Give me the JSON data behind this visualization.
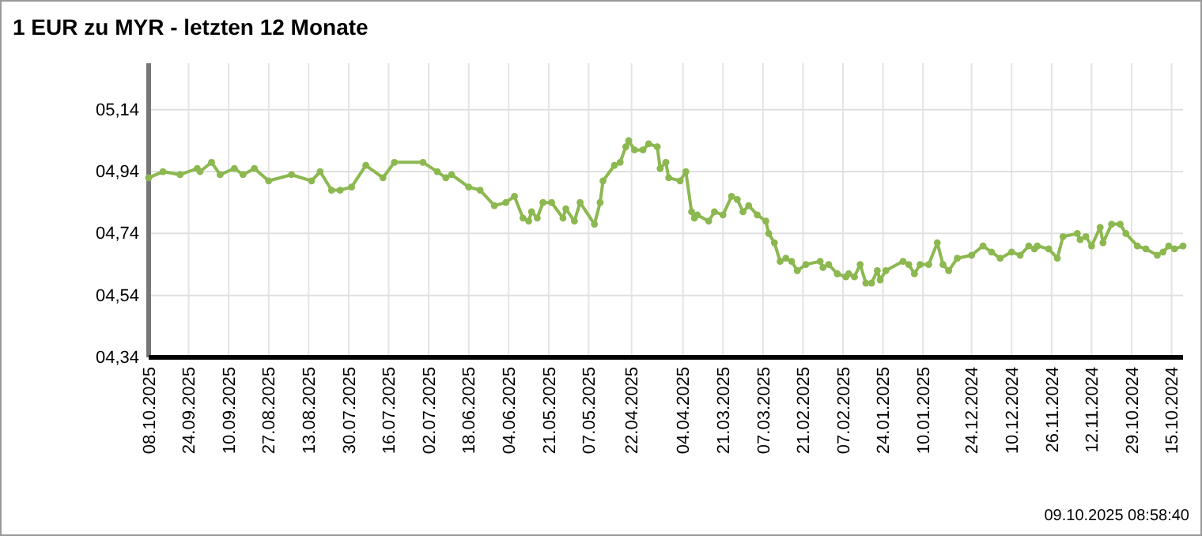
{
  "chart_data": {
    "type": "line",
    "title": "1 EUR zu MYR - letzten 12 Monate",
    "annotations": [
      "09.10.2025 08:58:40"
    ],
    "xlim": [
      "2025-10-08",
      "2024-10-11"
    ],
    "xticks": [
      {
        "value": "2025-10-08",
        "label": "08.10.2025"
      },
      {
        "value": "2025-09-24",
        "label": "24.09.2025"
      },
      {
        "value": "2025-09-10",
        "label": "10.09.2025"
      },
      {
        "value": "2025-08-27",
        "label": "27.08.2025"
      },
      {
        "value": "2025-08-13",
        "label": "13.08.2025"
      },
      {
        "value": "2025-07-30",
        "label": "30.07.2025"
      },
      {
        "value": "2025-07-16",
        "label": "16.07.2025"
      },
      {
        "value": "2025-07-02",
        "label": "02.07.2025"
      },
      {
        "value": "2025-06-18",
        "label": "18.06.2025"
      },
      {
        "value": "2025-06-04",
        "label": "04.06.2025"
      },
      {
        "value": "2025-05-21",
        "label": "21.05.2025"
      },
      {
        "value": "2025-05-07",
        "label": "07.05.2025"
      },
      {
        "value": "2025-04-22",
        "label": "22.04.2025"
      },
      {
        "value": "2025-04-04",
        "label": "04.04.2025"
      },
      {
        "value": "2025-03-21",
        "label": "21.03.2025"
      },
      {
        "value": "2025-03-07",
        "label": "07.03.2025"
      },
      {
        "value": "2025-02-21",
        "label": "21.02.2025"
      },
      {
        "value": "2025-02-07",
        "label": "07.02.2025"
      },
      {
        "value": "2025-01-24",
        "label": "24.01.2025"
      },
      {
        "value": "2025-01-10",
        "label": "10.01.2025"
      },
      {
        "value": "2024-12-24",
        "label": "24.12.2024"
      },
      {
        "value": "2024-12-10",
        "label": "10.12.2024"
      },
      {
        "value": "2024-11-26",
        "label": "26.11.2024"
      },
      {
        "value": "2024-11-12",
        "label": "12.11.2024"
      },
      {
        "value": "2024-10-29",
        "label": "29.10.2024"
      },
      {
        "value": "2024-10-15",
        "label": "15.10.2024"
      }
    ],
    "ylim": [
      4.34,
      5.29
    ],
    "yticks": [
      {
        "value": 4.34,
        "label": "04,34"
      },
      {
        "value": 4.54,
        "label": "04,54"
      },
      {
        "value": 4.74,
        "label": "04,74"
      },
      {
        "value": 4.94,
        "label": "04,94"
      },
      {
        "value": 5.14,
        "label": "05,14"
      }
    ],
    "grid": true,
    "marker": "circle",
    "line_style": "solid",
    "x": [
      "2025-10-08",
      "2025-10-03",
      "2025-09-27",
      "2025-09-21",
      "2025-09-20",
      "2025-09-16",
      "2025-09-13",
      "2025-09-08",
      "2025-09-05",
      "2025-09-01",
      "2025-08-27",
      "2025-08-19",
      "2025-08-12",
      "2025-08-09",
      "2025-08-05",
      "2025-08-02",
      "2025-07-29",
      "2025-07-24",
      "2025-07-18",
      "2025-07-14",
      "2025-07-04",
      "2025-06-29",
      "2025-06-26",
      "2025-06-24",
      "2025-06-18",
      "2025-06-14",
      "2025-06-09",
      "2025-06-05",
      "2025-06-02",
      "2025-05-30",
      "2025-05-28",
      "2025-05-27",
      "2025-05-25",
      "2025-05-23",
      "2025-05-20",
      "2025-05-16",
      "2025-05-15",
      "2025-05-12",
      "2025-05-10",
      "2025-05-05",
      "2025-05-03",
      "2025-05-02",
      "2025-04-28",
      "2025-04-26",
      "2025-04-24",
      "2025-04-23",
      "2025-04-21",
      "2025-04-18",
      "2025-04-16",
      "2025-04-13",
      "2025-04-12",
      "2025-04-10",
      "2025-04-09",
      "2025-04-05",
      "2025-04-03",
      "2025-04-01",
      "2025-03-31",
      "2025-03-30",
      "2025-03-26",
      "2025-03-24",
      "2025-03-21",
      "2025-03-18",
      "2025-03-16",
      "2025-03-14",
      "2025-03-12",
      "2025-03-09",
      "2025-03-06",
      "2025-03-05",
      "2025-03-03",
      "2025-03-01",
      "2025-02-27",
      "2025-02-25",
      "2025-02-23",
      "2025-02-20",
      "2025-02-15",
      "2025-02-14",
      "2025-02-12",
      "2025-02-09",
      "2025-02-06",
      "2025-02-05",
      "2025-02-03",
      "2025-02-01",
      "2025-01-30",
      "2025-01-28",
      "2025-01-26",
      "2025-01-25",
      "2025-01-23",
      "2025-01-17",
      "2025-01-15",
      "2025-01-13",
      "2025-01-11",
      "2025-01-08",
      "2025-01-05",
      "2025-01-03",
      "2025-01-01",
      "2024-12-29",
      "2024-12-24",
      "2024-12-20",
      "2024-12-17",
      "2024-12-14",
      "2024-12-10",
      "2024-12-07",
      "2024-12-04",
      "2024-12-02",
      "2024-12-01",
      "2024-11-27",
      "2024-11-24",
      "2024-11-22",
      "2024-11-17",
      "2024-11-16",
      "2024-11-14",
      "2024-11-12",
      "2024-11-09",
      "2024-11-08",
      "2024-11-05",
      "2024-11-02",
      "2024-10-31",
      "2024-10-27",
      "2024-10-24",
      "2024-10-20",
      "2024-10-18",
      "2024-10-16",
      "2024-10-14",
      "2024-10-11"
    ],
    "series": [
      {
        "color": "#8cb850",
        "values": [
          4.92,
          4.94,
          4.93,
          4.95,
          4.94,
          4.97,
          4.93,
          4.95,
          4.93,
          4.95,
          4.91,
          4.93,
          4.91,
          4.94,
          4.88,
          4.88,
          4.89,
          4.96,
          4.92,
          4.97,
          4.97,
          4.94,
          4.92,
          4.93,
          4.89,
          4.88,
          4.83,
          4.84,
          4.86,
          4.79,
          4.78,
          4.81,
          4.79,
          4.84,
          4.84,
          4.79,
          4.82,
          4.78,
          4.84,
          4.77,
          4.84,
          4.91,
          4.96,
          4.97,
          5.02,
          5.04,
          5.01,
          5.01,
          5.03,
          5.02,
          4.95,
          4.97,
          4.92,
          4.91,
          4.94,
          4.81,
          4.79,
          4.8,
          4.78,
          4.81,
          4.8,
          4.86,
          4.85,
          4.81,
          4.83,
          4.8,
          4.78,
          4.74,
          4.71,
          4.65,
          4.66,
          4.65,
          4.62,
          4.64,
          4.65,
          4.63,
          4.64,
          4.61,
          4.6,
          4.61,
          4.6,
          4.64,
          4.58,
          4.58,
          4.62,
          4.59,
          4.62,
          4.65,
          4.64,
          4.61,
          4.64,
          4.64,
          4.71,
          4.64,
          4.62,
          4.66,
          4.67,
          4.7,
          4.68,
          4.66,
          4.68,
          4.67,
          4.7,
          4.69,
          4.7,
          4.69,
          4.66,
          4.73,
          4.74,
          4.72,
          4.73,
          4.7,
          4.76,
          4.71,
          4.77,
          4.77,
          4.74,
          4.7,
          4.69,
          4.67,
          4.68,
          4.7,
          4.69,
          4.7
        ]
      }
    ]
  }
}
